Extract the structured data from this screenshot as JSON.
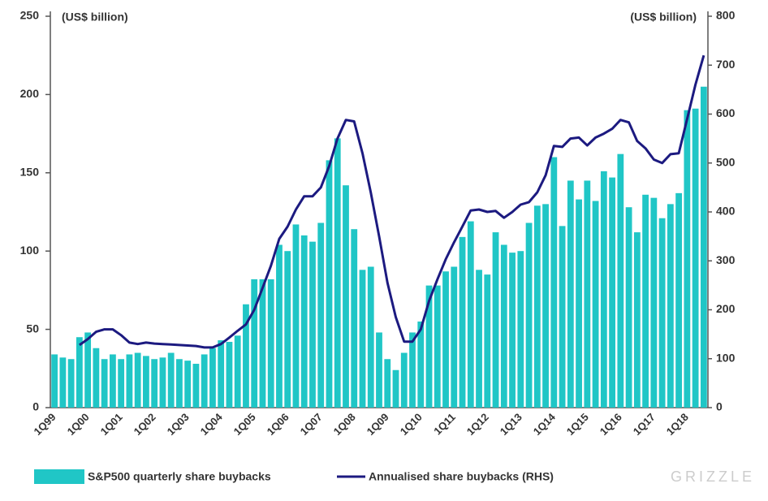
{
  "chart_data": {
    "type": "bar-line",
    "y_label": "(US$ billion)",
    "y2_label": "(US$ billion)",
    "brand": "GRIZZLE",
    "categories": [
      "1Q99",
      null,
      null,
      null,
      "1Q00",
      null,
      null,
      null,
      "1Q01",
      null,
      null,
      null,
      "1Q02",
      null,
      null,
      null,
      "1Q03",
      null,
      null,
      null,
      "1Q04",
      null,
      null,
      null,
      "1Q05",
      null,
      null,
      null,
      "1Q06",
      null,
      null,
      null,
      "1Q07",
      null,
      null,
      null,
      "1Q08",
      null,
      null,
      null,
      "1Q09",
      null,
      null,
      null,
      "1Q10",
      null,
      null,
      null,
      "1Q11",
      null,
      null,
      null,
      "1Q12",
      null,
      null,
      null,
      "1Q13",
      null,
      null,
      null,
      "1Q14",
      null,
      null,
      null,
      "1Q15",
      null,
      null,
      null,
      "1Q16",
      null,
      null,
      null,
      "1Q17",
      null,
      null,
      null,
      "1Q18",
      null,
      null
    ],
    "series": [
      {
        "name": "S&P500 quarterly share buybacks",
        "color": "#20c6c6",
        "kind": "bar",
        "values": [
          34,
          32,
          31,
          45,
          48,
          38,
          31,
          34,
          31,
          34,
          35,
          33,
          31,
          32,
          35,
          31,
          30,
          28,
          34,
          38,
          43,
          42,
          46,
          66,
          82,
          82,
          82,
          104,
          100,
          117,
          110,
          106,
          118,
          158,
          172,
          142,
          114,
          88,
          90,
          48,
          31,
          24,
          35,
          48,
          55,
          78,
          78,
          87,
          90,
          109,
          119,
          88,
          85,
          112,
          104,
          99,
          100,
          118,
          129,
          130,
          160,
          116,
          145,
          133,
          145,
          132,
          151,
          147,
          162,
          128,
          112,
          136,
          134,
          121,
          130,
          137,
          190,
          191,
          205
        ]
      },
      {
        "name": "Annualised share buybacks (RHS)",
        "color": "#1c1a80",
        "kind": "line",
        "axis": "y2",
        "values": [
          null,
          null,
          null,
          128,
          140,
          155,
          160,
          160,
          148,
          133,
          130,
          133,
          131,
          130,
          129,
          128,
          127,
          126,
          123,
          123,
          130,
          143,
          157,
          170,
          200,
          245,
          290,
          345,
          370,
          405,
          432,
          432,
          450,
          494,
          550,
          588,
          585,
          520,
          440,
          350,
          255,
          185,
          135,
          135,
          160,
          218,
          262,
          303,
          338,
          370,
          403,
          405,
          400,
          402,
          388,
          400,
          415,
          420,
          440,
          475,
          535,
          533,
          550,
          552,
          536,
          552,
          560,
          570,
          588,
          583,
          545,
          530,
          507,
          500,
          518,
          520,
          590,
          660,
          720
        ]
      }
    ],
    "ylim": [
      0,
      250
    ],
    "yticks": [
      0,
      50,
      100,
      150,
      200,
      250
    ],
    "y2lim": [
      0,
      800
    ],
    "y2ticks": [
      0,
      100,
      200,
      300,
      400,
      500,
      600,
      700,
      800
    ],
    "grid": false
  }
}
